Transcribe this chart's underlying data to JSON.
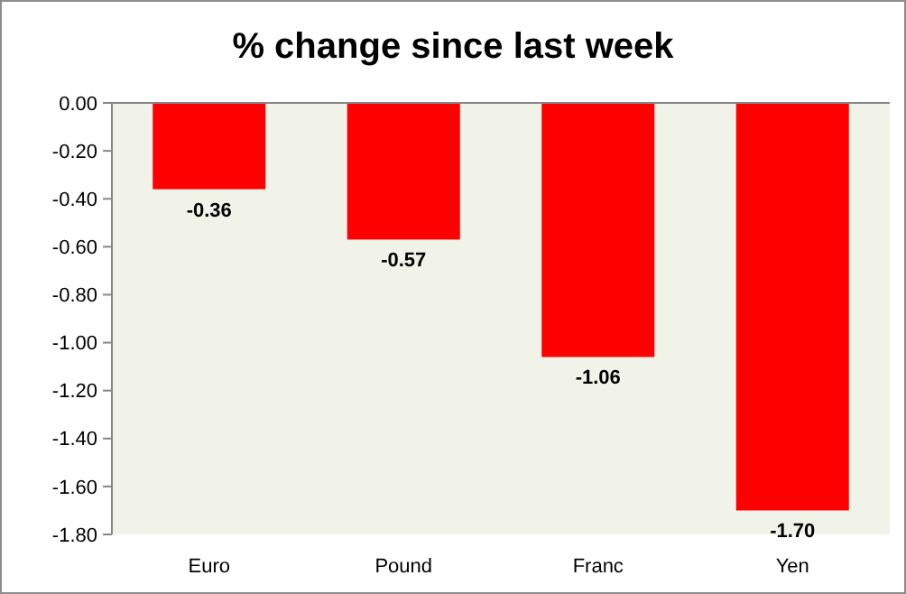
{
  "chart_data": {
    "type": "bar",
    "title": "% change since last week",
    "categories": [
      "Euro",
      "Pound",
      "Franc",
      "Yen"
    ],
    "values": [
      -0.36,
      -0.57,
      -1.06,
      -1.7
    ],
    "value_labels": [
      "-0.36",
      "-0.57",
      "-1.06",
      "-1.70"
    ],
    "color": "#ff0000",
    "ylim": [
      -1.8,
      0
    ],
    "yticks": [
      {
        "value": 0,
        "label": "0.00"
      },
      {
        "value": -0.2,
        "label": "-0.20"
      },
      {
        "value": -0.4,
        "label": "-0.40"
      },
      {
        "value": -0.6,
        "label": "-0.60"
      },
      {
        "value": -0.8,
        "label": "-0.80"
      },
      {
        "value": -1.0,
        "label": "-1.00"
      },
      {
        "value": -1.2,
        "label": "-1.20"
      },
      {
        "value": -1.4,
        "label": "-1.40"
      },
      {
        "value": -1.6,
        "label": "-1.60"
      },
      {
        "value": -1.8,
        "label": "-1.80"
      }
    ],
    "grid": false
  }
}
